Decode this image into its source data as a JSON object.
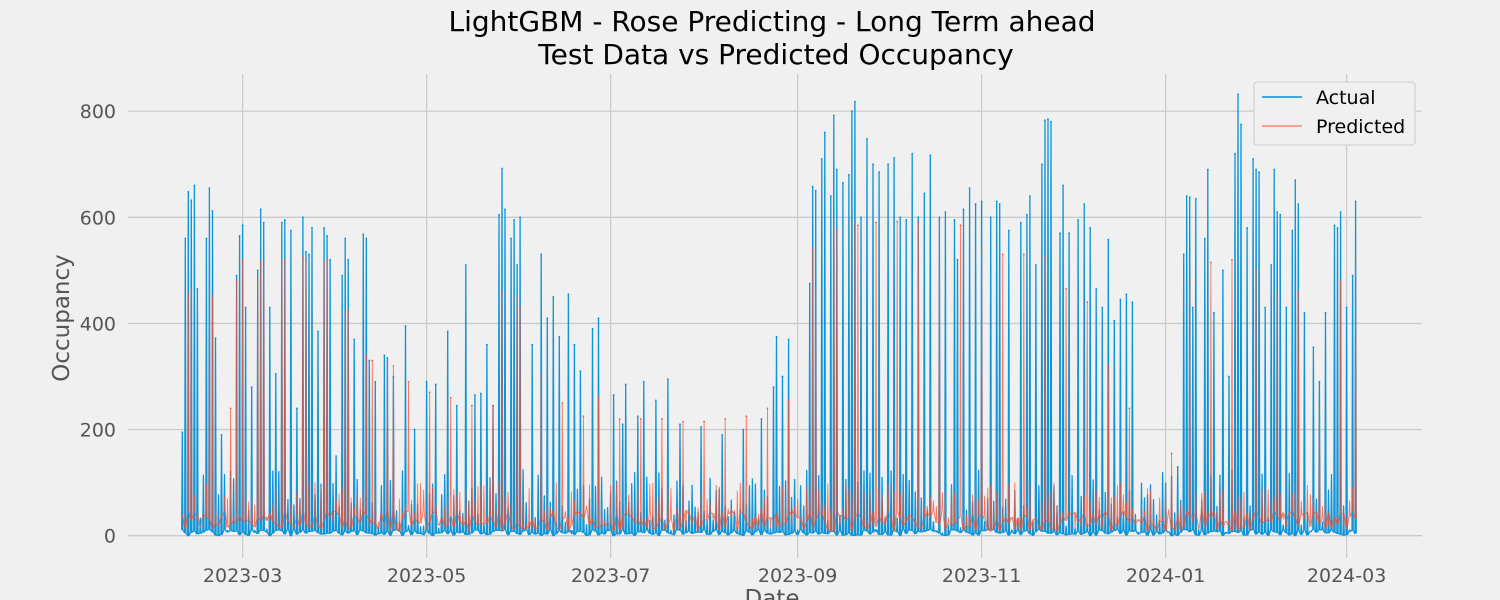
{
  "chart_data": {
    "type": "line",
    "title": "LightGBM - Rose Predicting - Long Term ahead",
    "subtitle": "Test Data vs Predicted Occupancy",
    "xlabel": "Date",
    "ylabel": "Occupancy",
    "x_range": [
      "2023-01-22",
      "2024-03-26"
    ],
    "ylim": [
      -42,
      870
    ],
    "x_ticks": [
      "2023-03-01",
      "2023-05-01",
      "2023-07-01",
      "2023-09-01",
      "2023-11-01",
      "2024-01-01",
      "2024-03-01"
    ],
    "x_tick_labels": [
      "2023-03",
      "2023-05",
      "2023-07",
      "2023-09",
      "2023-11",
      "2024-01",
      "2024-03"
    ],
    "y_ticks": [
      0,
      200,
      400,
      600,
      800
    ],
    "grid": true,
    "legend_position": "top-right",
    "series": [
      {
        "name": "Actual",
        "color": "#008fd5",
        "points": [
          [
            "2023-02-09",
            195
          ],
          [
            "2023-02-10",
            560
          ],
          [
            "2023-02-11",
            648
          ],
          [
            "2023-02-12",
            632
          ],
          [
            "2023-02-13",
            660
          ],
          [
            "2023-02-14",
            465
          ],
          [
            "2023-02-17",
            560
          ],
          [
            "2023-02-18",
            655
          ],
          [
            "2023-02-19",
            612
          ],
          [
            "2023-02-20",
            372
          ],
          [
            "2023-02-22",
            190
          ],
          [
            "2023-02-25",
            120
          ],
          [
            "2023-02-27",
            490
          ],
          [
            "2023-02-28",
            565
          ],
          [
            "2023-03-01",
            585
          ],
          [
            "2023-03-02",
            430
          ],
          [
            "2023-03-04",
            280
          ],
          [
            "2023-03-06",
            500
          ],
          [
            "2023-03-07",
            615
          ],
          [
            "2023-03-08",
            590
          ],
          [
            "2023-03-10",
            430
          ],
          [
            "2023-03-12",
            305
          ],
          [
            "2023-03-14",
            590
          ],
          [
            "2023-03-15",
            595
          ],
          [
            "2023-03-17",
            575
          ],
          [
            "2023-03-19",
            240
          ],
          [
            "2023-03-21",
            600
          ],
          [
            "2023-03-22",
            535
          ],
          [
            "2023-03-23",
            530
          ],
          [
            "2023-03-24",
            580
          ],
          [
            "2023-03-26",
            385
          ],
          [
            "2023-03-28",
            580
          ],
          [
            "2023-03-29",
            565
          ],
          [
            "2023-03-30",
            520
          ],
          [
            "2023-04-01",
            150
          ],
          [
            "2023-04-03",
            490
          ],
          [
            "2023-04-04",
            560
          ],
          [
            "2023-04-05",
            520
          ],
          [
            "2023-04-07",
            370
          ],
          [
            "2023-04-10",
            568
          ],
          [
            "2023-04-11",
            560
          ],
          [
            "2023-04-12",
            330
          ],
          [
            "2023-04-14",
            290
          ],
          [
            "2023-04-17",
            340
          ],
          [
            "2023-04-18",
            335
          ],
          [
            "2023-04-20",
            300
          ],
          [
            "2023-04-24",
            395
          ],
          [
            "2023-04-27",
            200
          ],
          [
            "2023-05-01",
            290
          ],
          [
            "2023-05-04",
            285
          ],
          [
            "2023-05-08",
            385
          ],
          [
            "2023-05-11",
            245
          ],
          [
            "2023-05-14",
            510
          ],
          [
            "2023-05-17",
            265
          ],
          [
            "2023-05-19",
            268
          ],
          [
            "2023-05-21",
            360
          ],
          [
            "2023-05-23",
            245
          ],
          [
            "2023-05-25",
            605
          ],
          [
            "2023-05-26",
            692
          ],
          [
            "2023-05-27",
            615
          ],
          [
            "2023-05-29",
            560
          ],
          [
            "2023-05-30",
            595
          ],
          [
            "2023-05-31",
            510
          ],
          [
            "2023-06-01",
            600
          ],
          [
            "2023-06-05",
            360
          ],
          [
            "2023-06-08",
            530
          ],
          [
            "2023-06-10",
            410
          ],
          [
            "2023-06-12",
            450
          ],
          [
            "2023-06-14",
            375
          ],
          [
            "2023-06-17",
            455
          ],
          [
            "2023-06-19",
            360
          ],
          [
            "2023-06-21",
            310
          ],
          [
            "2023-06-25",
            390
          ],
          [
            "2023-06-27",
            410
          ],
          [
            "2023-07-02",
            265
          ],
          [
            "2023-07-05",
            210
          ],
          [
            "2023-07-06",
            285
          ],
          [
            "2023-07-10",
            225
          ],
          [
            "2023-07-12",
            290
          ],
          [
            "2023-07-16",
            255
          ],
          [
            "2023-07-20",
            295
          ],
          [
            "2023-07-24",
            210
          ],
          [
            "2023-07-31",
            205
          ],
          [
            "2023-08-07",
            190
          ],
          [
            "2023-08-14",
            200
          ],
          [
            "2023-08-20",
            220
          ],
          [
            "2023-08-24",
            280
          ],
          [
            "2023-08-25",
            375
          ],
          [
            "2023-08-27",
            300
          ],
          [
            "2023-08-29",
            370
          ],
          [
            "2023-09-05",
            475
          ],
          [
            "2023-09-06",
            658
          ],
          [
            "2023-09-07",
            650
          ],
          [
            "2023-09-09",
            710
          ],
          [
            "2023-09-10",
            760
          ],
          [
            "2023-09-12",
            640
          ],
          [
            "2023-09-13",
            792
          ],
          [
            "2023-09-14",
            690
          ],
          [
            "2023-09-16",
            665
          ],
          [
            "2023-09-18",
            680
          ],
          [
            "2023-09-19",
            800
          ],
          [
            "2023-09-20",
            818
          ],
          [
            "2023-09-22",
            600
          ],
          [
            "2023-09-24",
            748
          ],
          [
            "2023-09-26",
            700
          ],
          [
            "2023-09-28",
            685
          ],
          [
            "2023-10-01",
            700
          ],
          [
            "2023-10-03",
            712
          ],
          [
            "2023-10-05",
            600
          ],
          [
            "2023-10-07",
            595
          ],
          [
            "2023-10-09",
            720
          ],
          [
            "2023-10-11",
            600
          ],
          [
            "2023-10-13",
            645
          ],
          [
            "2023-10-15",
            717
          ],
          [
            "2023-10-18",
            600
          ],
          [
            "2023-10-20",
            610
          ],
          [
            "2023-10-23",
            595
          ],
          [
            "2023-10-24",
            520
          ],
          [
            "2023-10-26",
            615
          ],
          [
            "2023-10-28",
            655
          ],
          [
            "2023-10-30",
            625
          ],
          [
            "2023-11-01",
            630
          ],
          [
            "2023-11-04",
            600
          ],
          [
            "2023-11-06",
            630
          ],
          [
            "2023-11-07",
            625
          ],
          [
            "2023-11-10",
            575
          ],
          [
            "2023-11-14",
            590
          ],
          [
            "2023-11-16",
            605
          ],
          [
            "2023-11-17",
            640
          ],
          [
            "2023-11-19",
            510
          ],
          [
            "2023-11-21",
            700
          ],
          [
            "2023-11-22",
            783
          ],
          [
            "2023-11-23",
            785
          ],
          [
            "2023-11-24",
            780
          ],
          [
            "2023-11-27",
            570
          ],
          [
            "2023-11-28",
            660
          ],
          [
            "2023-11-30",
            570
          ],
          [
            "2023-12-03",
            595
          ],
          [
            "2023-12-05",
            625
          ],
          [
            "2023-12-07",
            580
          ],
          [
            "2023-12-09",
            465
          ],
          [
            "2023-12-11",
            430
          ],
          [
            "2023-12-13",
            558
          ],
          [
            "2023-12-15",
            405
          ],
          [
            "2023-12-17",
            445
          ],
          [
            "2023-12-19",
            455
          ],
          [
            "2023-12-21",
            440
          ],
          [
            "2024-01-03",
            110
          ],
          [
            "2024-01-05",
            130
          ],
          [
            "2024-01-07",
            530
          ],
          [
            "2024-01-08",
            640
          ],
          [
            "2024-01-09",
            638
          ],
          [
            "2024-01-10",
            430
          ],
          [
            "2024-01-11",
            635
          ],
          [
            "2024-01-14",
            560
          ],
          [
            "2024-01-15",
            690
          ],
          [
            "2024-01-17",
            420
          ],
          [
            "2024-01-20",
            500
          ],
          [
            "2024-01-22",
            300
          ],
          [
            "2024-01-24",
            720
          ],
          [
            "2024-01-25",
            832
          ],
          [
            "2024-01-26",
            775
          ],
          [
            "2024-01-28",
            580
          ],
          [
            "2024-01-30",
            710
          ],
          [
            "2024-01-31",
            690
          ],
          [
            "2024-02-01",
            685
          ],
          [
            "2024-02-03",
            430
          ],
          [
            "2024-02-05",
            510
          ],
          [
            "2024-02-06",
            690
          ],
          [
            "2024-02-07",
            610
          ],
          [
            "2024-02-08",
            605
          ],
          [
            "2024-02-10",
            430
          ],
          [
            "2024-02-12",
            575
          ],
          [
            "2024-02-13",
            670
          ],
          [
            "2024-02-14",
            625
          ],
          [
            "2024-02-16",
            420
          ],
          [
            "2024-02-19",
            355
          ],
          [
            "2024-02-21",
            290
          ],
          [
            "2024-02-23",
            420
          ],
          [
            "2024-02-26",
            585
          ],
          [
            "2024-02-27",
            580
          ],
          [
            "2024-02-28",
            610
          ],
          [
            "2024-03-01",
            430
          ],
          [
            "2024-03-03",
            490
          ],
          [
            "2024-03-04",
            630
          ]
        ]
      },
      {
        "name": "Predicted",
        "color": "#fc4f30",
        "points": [
          [
            "2023-02-11",
            455
          ],
          [
            "2023-02-12",
            465
          ],
          [
            "2023-02-18",
            460
          ],
          [
            "2023-02-19",
            450
          ],
          [
            "2023-02-25",
            240
          ],
          [
            "2023-02-27",
            480
          ],
          [
            "2023-03-01",
            520
          ],
          [
            "2023-03-06",
            480
          ],
          [
            "2023-03-07",
            515
          ],
          [
            "2023-03-08",
            518
          ],
          [
            "2023-03-14",
            515
          ],
          [
            "2023-03-15",
            520
          ],
          [
            "2023-03-21",
            525
          ],
          [
            "2023-03-22",
            520
          ],
          [
            "2023-03-28",
            515
          ],
          [
            "2023-03-29",
            520
          ],
          [
            "2023-04-04",
            420
          ],
          [
            "2023-04-05",
            425
          ],
          [
            "2023-04-11",
            340
          ],
          [
            "2023-04-13",
            330
          ],
          [
            "2023-04-18",
            325
          ],
          [
            "2023-04-20",
            320
          ],
          [
            "2023-04-25",
            290
          ],
          [
            "2023-05-02",
            270
          ],
          [
            "2023-05-09",
            260
          ],
          [
            "2023-05-16",
            245
          ],
          [
            "2023-05-23",
            245
          ],
          [
            "2023-05-26",
            460
          ],
          [
            "2023-05-31",
            450
          ],
          [
            "2023-06-01",
            430
          ],
          [
            "2023-06-08",
            300
          ],
          [
            "2023-06-15",
            250
          ],
          [
            "2023-06-22",
            225
          ],
          [
            "2023-06-27",
            260
          ],
          [
            "2023-07-04",
            220
          ],
          [
            "2023-07-11",
            220
          ],
          [
            "2023-07-18",
            220
          ],
          [
            "2023-07-25",
            215
          ],
          [
            "2023-08-01",
            215
          ],
          [
            "2023-08-08",
            220
          ],
          [
            "2023-08-15",
            225
          ],
          [
            "2023-08-22",
            240
          ],
          [
            "2023-08-29",
            255
          ],
          [
            "2023-09-06",
            540
          ],
          [
            "2023-09-07",
            460
          ],
          [
            "2023-09-13",
            590
          ],
          [
            "2023-09-14",
            575
          ],
          [
            "2023-09-20",
            590
          ],
          [
            "2023-09-21",
            585
          ],
          [
            "2023-09-27",
            590
          ],
          [
            "2023-10-04",
            592
          ],
          [
            "2023-10-11",
            590
          ],
          [
            "2023-10-18",
            595
          ],
          [
            "2023-10-25",
            585
          ],
          [
            "2023-11-01",
            540
          ],
          [
            "2023-11-08",
            530
          ],
          [
            "2023-11-15",
            530
          ],
          [
            "2023-11-22",
            525
          ],
          [
            "2023-11-29",
            465
          ],
          [
            "2023-12-06",
            440
          ],
          [
            "2023-12-13",
            320
          ],
          [
            "2023-12-20",
            240
          ],
          [
            "2024-01-03",
            155
          ],
          [
            "2024-01-09",
            480
          ],
          [
            "2024-01-16",
            515
          ],
          [
            "2024-01-23",
            520
          ],
          [
            "2024-01-31",
            500
          ],
          [
            "2024-02-07",
            460
          ],
          [
            "2024-02-14",
            460
          ],
          [
            "2024-02-21",
            240
          ],
          [
            "2024-02-28",
            480
          ],
          [
            "2024-03-04",
            520
          ]
        ]
      }
    ]
  }
}
